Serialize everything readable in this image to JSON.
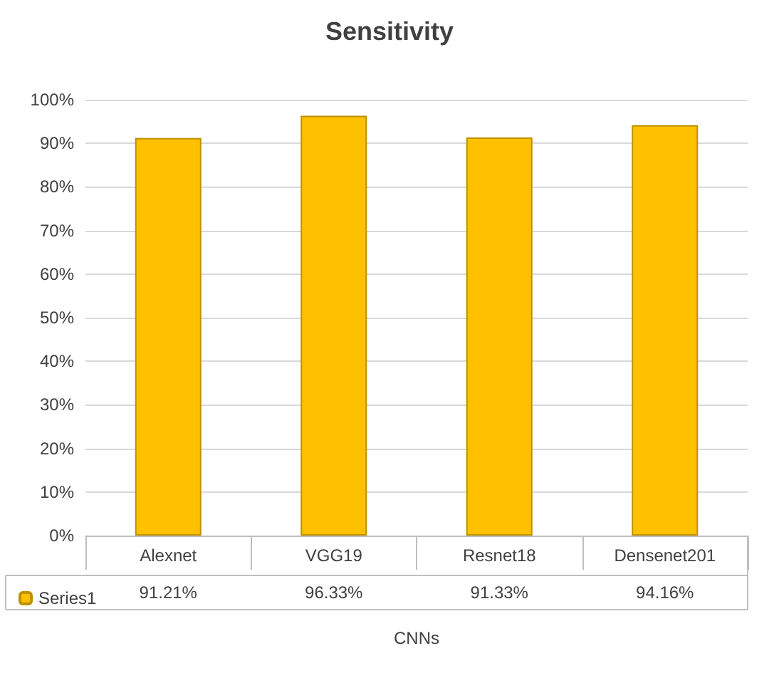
{
  "chart_data": {
    "type": "bar",
    "title": "Sensitivity",
    "xlabel": "CNNs",
    "categories": [
      "Alexnet",
      "VGG19",
      "Resnet18",
      "Densenet201"
    ],
    "series": [
      {
        "name": "Series1",
        "color": "#ffc000",
        "values": [
          91.21,
          96.33,
          91.33,
          94.16
        ],
        "value_labels": [
          "91.21%",
          "96.33%",
          "91.33%",
          "94.16%"
        ]
      }
    ],
    "ylim": [
      0,
      100
    ],
    "yticks": [
      {
        "value": 0,
        "label": "0%"
      },
      {
        "value": 10,
        "label": "10%"
      },
      {
        "value": 20,
        "label": "20%"
      },
      {
        "value": 30,
        "label": "30%"
      },
      {
        "value": 40,
        "label": "40%"
      },
      {
        "value": 50,
        "label": "50%"
      },
      {
        "value": 60,
        "label": "60%"
      },
      {
        "value": 70,
        "label": "70%"
      },
      {
        "value": 80,
        "label": "80%"
      },
      {
        "value": 90,
        "label": "90%"
      },
      {
        "value": 100,
        "label": "100%"
      }
    ],
    "grid": true,
    "legend": "bottom left"
  }
}
